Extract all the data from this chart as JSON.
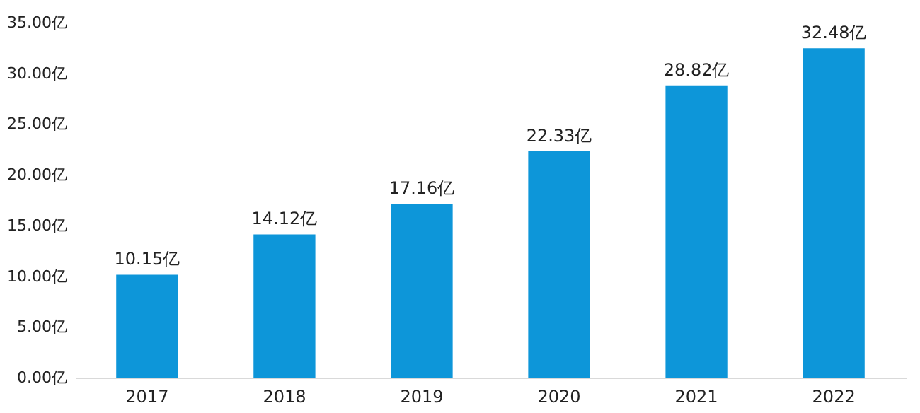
{
  "chart_data": {
    "type": "bar",
    "categories": [
      "2017",
      "2018",
      "2019",
      "2020",
      "2021",
      "2022"
    ],
    "values": [
      10.15,
      14.12,
      17.16,
      22.33,
      28.82,
      32.48
    ],
    "value_labels": [
      "10.15亿",
      "14.12亿",
      "17.16亿",
      "22.33亿",
      "28.82亿",
      "32.48亿"
    ],
    "color": "#0d96d9",
    "ylim": [
      0,
      35
    ],
    "yticks": [
      {
        "value": 0,
        "label": "0.00亿"
      },
      {
        "value": 5,
        "label": "5.00亿"
      },
      {
        "value": 10,
        "label": "10.00亿"
      },
      {
        "value": 15,
        "label": "15.00亿"
      },
      {
        "value": 20,
        "label": "20.00亿"
      },
      {
        "value": 25,
        "label": "25.00亿"
      },
      {
        "value": 30,
        "label": "30.00亿"
      },
      {
        "value": 35,
        "label": "35.00亿"
      }
    ],
    "grid": false
  }
}
